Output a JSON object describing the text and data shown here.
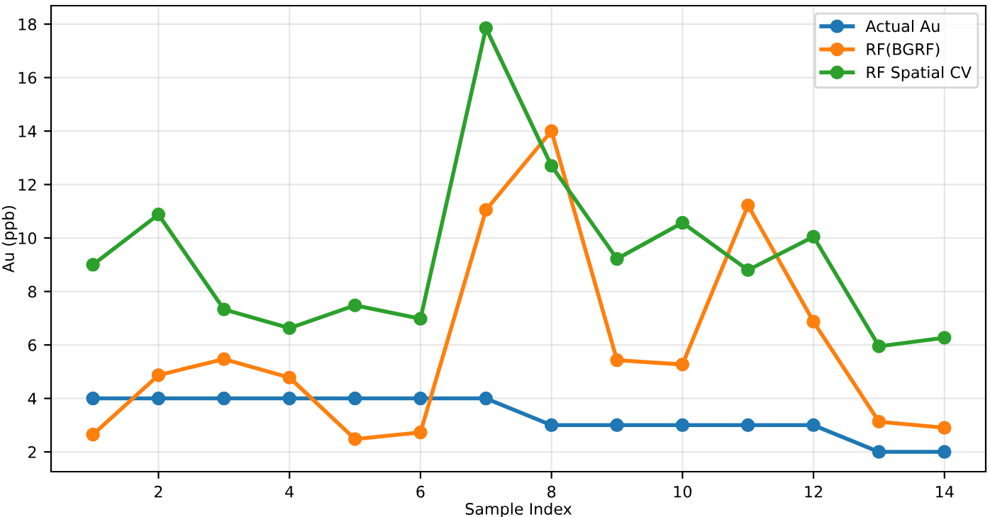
{
  "chart_data": {
    "type": "line",
    "xlabel": "Sample Index",
    "ylabel": "Au (ppb)",
    "x": [
      1,
      2,
      3,
      4,
      5,
      6,
      7,
      8,
      9,
      10,
      11,
      12,
      13,
      14
    ],
    "xlim": [
      0.36,
      14.63
    ],
    "xticks": [
      2,
      4,
      6,
      8,
      10,
      12,
      14
    ],
    "ylim": [
      1.26,
      18.69
    ],
    "yticks": [
      2,
      4,
      6,
      8,
      10,
      12,
      14,
      16,
      18
    ],
    "grid": true,
    "legend": "top right",
    "marker": "circle",
    "line_style": "solid",
    "series": [
      {
        "name": "Actual Au",
        "color": "#1f77b4",
        "values": [
          4,
          4,
          4,
          4,
          4,
          4,
          4,
          3,
          3,
          3,
          3,
          3,
          2,
          2
        ]
      },
      {
        "name": "RF(BGRF)",
        "color": "#ff7f0e",
        "values": [
          2.65,
          4.87,
          5.47,
          4.78,
          2.48,
          2.73,
          11.05,
          14.0,
          5.43,
          5.27,
          11.22,
          6.87,
          3.13,
          2.9
        ]
      },
      {
        "name": "RF Spatial CV",
        "color": "#2ca02c",
        "values": [
          9.0,
          10.88,
          7.33,
          6.63,
          7.48,
          6.98,
          17.85,
          12.7,
          9.22,
          10.57,
          8.8,
          10.05,
          5.95,
          6.27
        ]
      }
    ]
  }
}
